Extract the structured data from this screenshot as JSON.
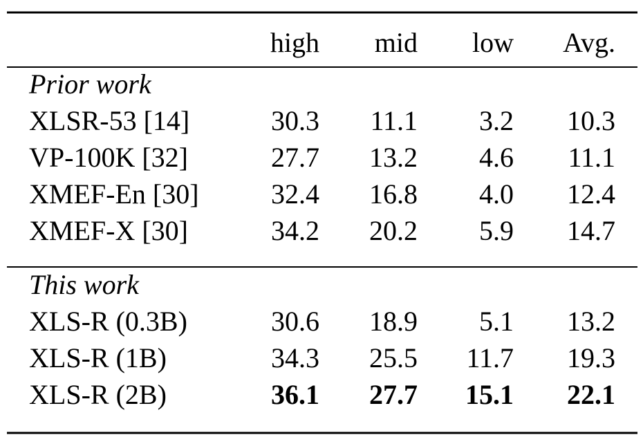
{
  "table": {
    "header": [
      "high",
      "mid",
      "low",
      "Avg."
    ],
    "sections": [
      {
        "title": "Prior work",
        "rows": [
          {
            "label": "XLSR-53 [14]",
            "values": [
              "30.3",
              "11.1",
              "3.2",
              "10.3"
            ]
          },
          {
            "label": "VP-100K [32]",
            "values": [
              "27.7",
              "13.2",
              "4.6",
              "11.1"
            ]
          },
          {
            "label": "XMEF-En [30]",
            "values": [
              "32.4",
              "16.8",
              "4.0",
              "12.4"
            ]
          },
          {
            "label": "XMEF-X [30]",
            "values": [
              "34.2",
              "20.2",
              "5.9",
              "14.7"
            ]
          }
        ]
      },
      {
        "title": "This work",
        "rows": [
          {
            "label": "XLS-R (0.3B)",
            "values": [
              "30.6",
              "18.9",
              "5.1",
              "13.2"
            ]
          },
          {
            "label": "XLS-R (1B)",
            "values": [
              "34.3",
              "25.5",
              "11.7",
              "19.3"
            ]
          },
          {
            "label": "XLS-R (2B)",
            "values": [
              "36.1",
              "27.7",
              "15.1",
              "22.1"
            ],
            "bold": true
          }
        ]
      }
    ]
  }
}
